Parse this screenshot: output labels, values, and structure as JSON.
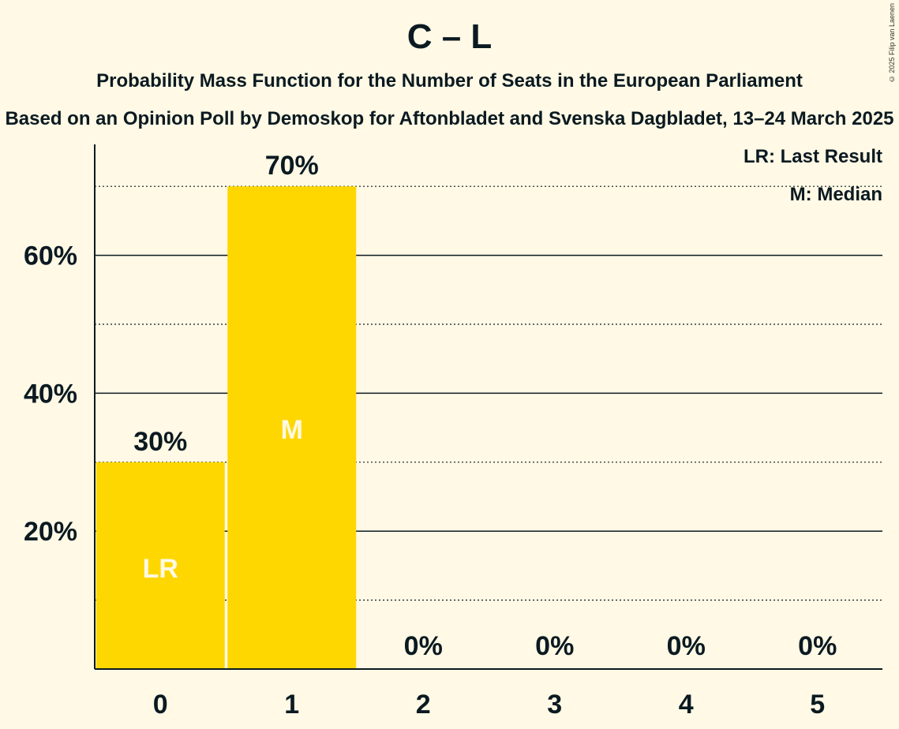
{
  "title": "C – L",
  "subtitle": "Probability Mass Function for the Number of Seats in the European Parliament",
  "subtitle2": "Based on an Opinion Poll by Demoskop for Aftonbladet and Svenska Dagbladet, 13–24 March 2025",
  "copyright": "© 2025 Filip van Laenen",
  "legend": {
    "last_result": "LR: Last Result",
    "median": "M: Median"
  },
  "colors": {
    "bar": "#FFD700",
    "background": "#FFF9E5",
    "text": "#0b1a21",
    "marker_text": "#FFF9E5"
  },
  "chart_data": {
    "type": "bar",
    "categories": [
      "0",
      "1",
      "2",
      "3",
      "4",
      "5"
    ],
    "values": [
      30,
      70,
      0,
      0,
      0,
      0
    ],
    "value_labels": [
      "30%",
      "70%",
      "0%",
      "0%",
      "0%",
      "0%"
    ],
    "markers": {
      "0": "LR",
      "1": "M"
    },
    "yticks": [
      20,
      40,
      60
    ],
    "ytick_labels": [
      "20%",
      "40%",
      "60%"
    ],
    "minor_gridlines": [
      10,
      30,
      50,
      70
    ],
    "ylim": [
      0,
      76
    ],
    "grid": true,
    "legend_position": "top-right"
  }
}
